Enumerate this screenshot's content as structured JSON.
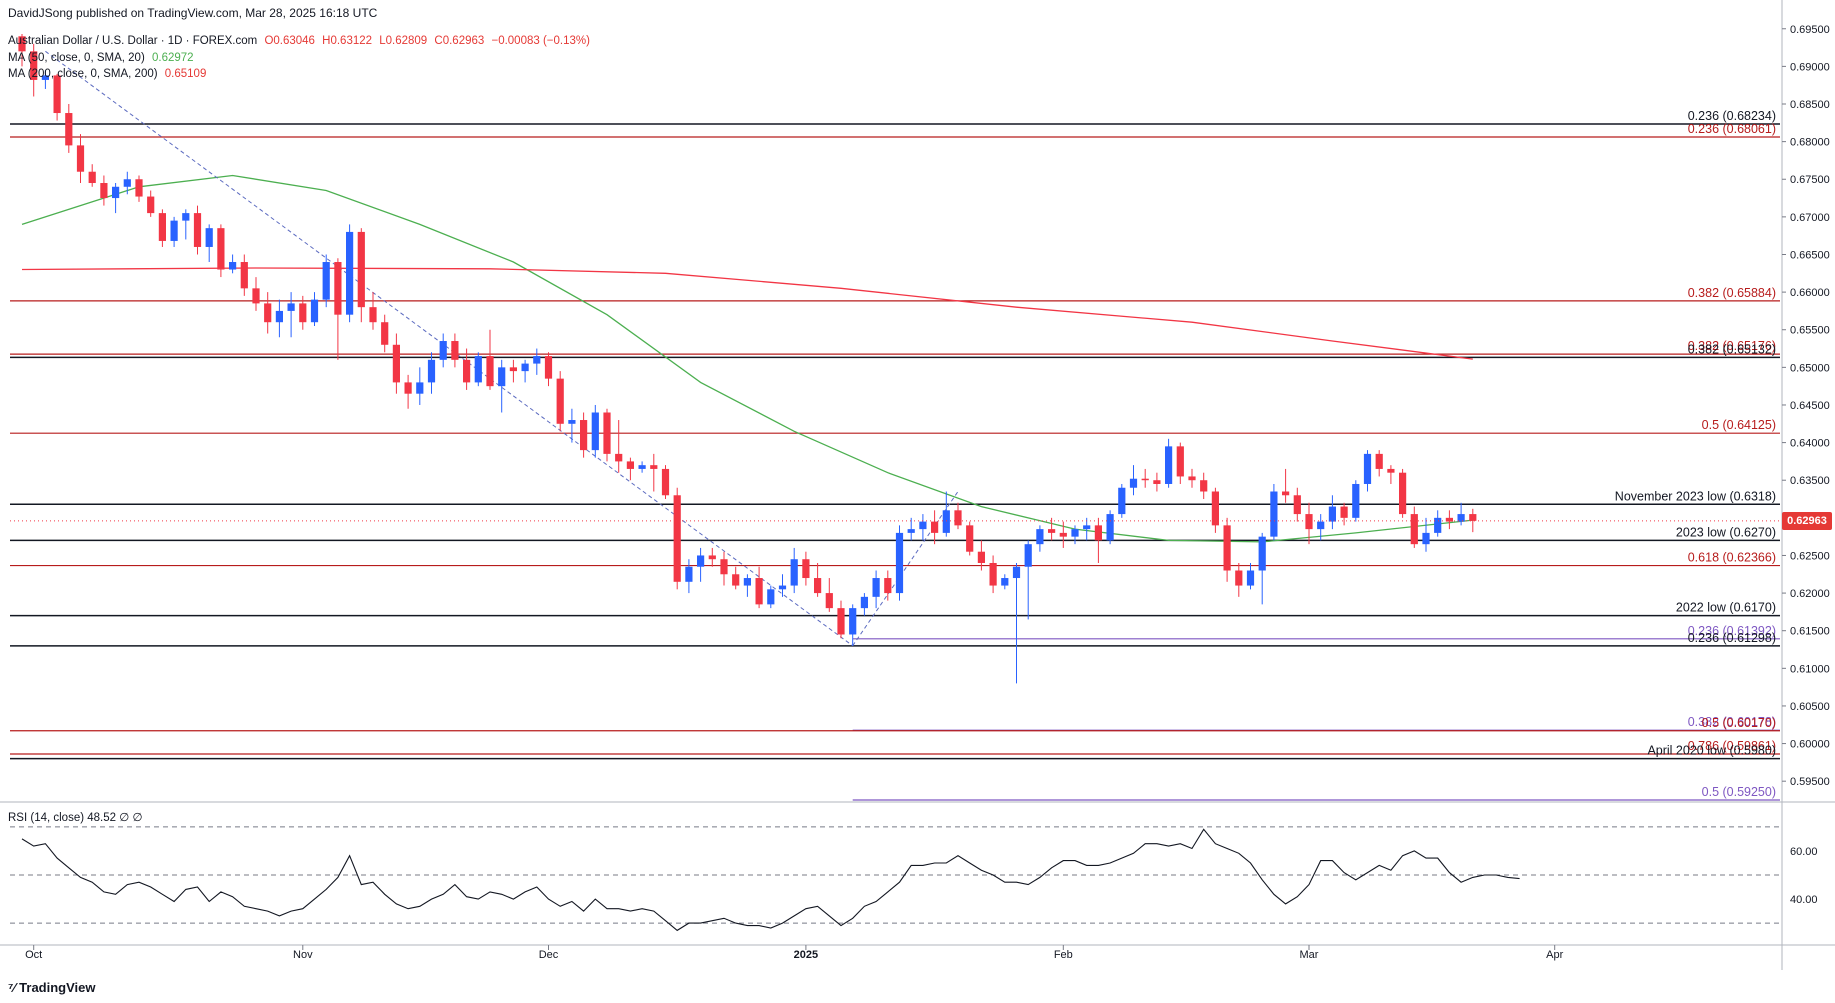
{
  "publisher": "DavidJSong published on TradingView.com, Mar 28, 2025 16:18 UTC",
  "legend": {
    "symbol": "Australian Dollar / U.S. Dollar · 1D · FOREX.com",
    "open": "O0.63046",
    "high": "H0.63122",
    "low": "L0.62809",
    "close": "C0.62963",
    "change": "−0.00083 (−0.13%)",
    "ma50_label": "MA (50, close, 0, SMA, 20)",
    "ma50_value": "0.62972",
    "ma200_label": "MA (200, close, 0, SMA, 200)",
    "ma200_value": "0.65109",
    "rsi_label": "RSI (14, close)",
    "rsi_value": "48.52",
    "rsi_extra": "∅ ∅"
  },
  "logo": "TradingView",
  "last_price_tag": "0.62963",
  "colors": {
    "up": "#2962ff",
    "down": "#f23645",
    "ma50": "#4caf50",
    "ma200": "#f23645",
    "fib_red": "#b71c1c",
    "fib_purple": "#7e57c2",
    "trend": "#5c6bc0"
  },
  "chart_data": [
    {
      "type": "candlestick",
      "title": "Australian Dollar / U.S. Dollar · 1D · FOREX.com",
      "y_range": [
        0.5925,
        0.6955
      ],
      "y_ticks": [
        "0.69500",
        "0.69000",
        "0.68500",
        "0.68000",
        "0.67500",
        "0.67000",
        "0.66500",
        "0.66000",
        "0.65500",
        "0.65000",
        "0.64500",
        "0.64000",
        "0.63500",
        "0.63000",
        "0.62500",
        "0.62000",
        "0.61500",
        "0.61000",
        "0.60500",
        "0.60000",
        "0.59500"
      ],
      "x_ticks": [
        "Oct",
        "Nov",
        "Dec",
        "2025",
        "Feb",
        "Mar",
        "Apr"
      ],
      "x_tick_index": [
        1,
        24,
        45,
        67,
        89,
        110,
        131
      ],
      "ohlc": [
        [
          0.694,
          0.6943,
          0.69,
          0.692
        ],
        [
          0.692,
          0.693,
          0.686,
          0.6882
        ],
        [
          0.6882,
          0.6895,
          0.687,
          0.6888
        ],
        [
          0.6888,
          0.689,
          0.6828,
          0.6838
        ],
        [
          0.6838,
          0.685,
          0.6785,
          0.6795
        ],
        [
          0.6795,
          0.681,
          0.6745,
          0.676
        ],
        [
          0.676,
          0.677,
          0.674,
          0.6745
        ],
        [
          0.6745,
          0.6755,
          0.6715,
          0.6725
        ],
        [
          0.6725,
          0.6745,
          0.6705,
          0.674
        ],
        [
          0.674,
          0.676,
          0.673,
          0.675
        ],
        [
          0.675,
          0.6755,
          0.672,
          0.6727
        ],
        [
          0.6727,
          0.6735,
          0.67,
          0.6705
        ],
        [
          0.6705,
          0.671,
          0.666,
          0.6668
        ],
        [
          0.6668,
          0.67,
          0.666,
          0.6695
        ],
        [
          0.6695,
          0.671,
          0.667,
          0.6705
        ],
        [
          0.6705,
          0.6715,
          0.665,
          0.666
        ],
        [
          0.666,
          0.669,
          0.664,
          0.6685
        ],
        [
          0.6685,
          0.669,
          0.662,
          0.663
        ],
        [
          0.663,
          0.665,
          0.6625,
          0.664
        ],
        [
          0.664,
          0.665,
          0.6595,
          0.6605
        ],
        [
          0.6605,
          0.662,
          0.6575,
          0.6585
        ],
        [
          0.6585,
          0.66,
          0.6545,
          0.656
        ],
        [
          0.656,
          0.659,
          0.654,
          0.6575
        ],
        [
          0.6575,
          0.66,
          0.654,
          0.6585
        ],
        [
          0.6585,
          0.6595,
          0.655,
          0.656
        ],
        [
          0.656,
          0.66,
          0.6555,
          0.659
        ],
        [
          0.659,
          0.665,
          0.658,
          0.664
        ],
        [
          0.664,
          0.6645,
          0.651,
          0.657
        ],
        [
          0.657,
          0.669,
          0.656,
          0.668
        ],
        [
          0.668,
          0.6685,
          0.656,
          0.658
        ],
        [
          0.658,
          0.66,
          0.655,
          0.656
        ],
        [
          0.656,
          0.657,
          0.652,
          0.653
        ],
        [
          0.653,
          0.6545,
          0.6465,
          0.648
        ],
        [
          0.648,
          0.649,
          0.6445,
          0.6465
        ],
        [
          0.6465,
          0.65,
          0.645,
          0.648
        ],
        [
          0.648,
          0.652,
          0.6465,
          0.651
        ],
        [
          0.651,
          0.6545,
          0.65,
          0.6535
        ],
        [
          0.6535,
          0.6545,
          0.65,
          0.651
        ],
        [
          0.651,
          0.6525,
          0.647,
          0.648
        ],
        [
          0.648,
          0.652,
          0.6475,
          0.6515
        ],
        [
          0.6515,
          0.655,
          0.647,
          0.6475
        ],
        [
          0.6475,
          0.651,
          0.644,
          0.65
        ],
        [
          0.65,
          0.651,
          0.648,
          0.6495
        ],
        [
          0.6495,
          0.651,
          0.648,
          0.6505
        ],
        [
          0.6505,
          0.6525,
          0.649,
          0.6515
        ],
        [
          0.6515,
          0.652,
          0.6475,
          0.6485
        ],
        [
          0.6485,
          0.6495,
          0.6415,
          0.6425
        ],
        [
          0.6425,
          0.6445,
          0.64,
          0.643
        ],
        [
          0.643,
          0.644,
          0.638,
          0.639
        ],
        [
          0.639,
          0.645,
          0.638,
          0.644
        ],
        [
          0.644,
          0.6445,
          0.6375,
          0.6385
        ],
        [
          0.6385,
          0.643,
          0.636,
          0.6375
        ],
        [
          0.6375,
          0.638,
          0.635,
          0.6365
        ],
        [
          0.6365,
          0.6375,
          0.636,
          0.637
        ],
        [
          0.637,
          0.6385,
          0.6335,
          0.6365
        ],
        [
          0.6365,
          0.637,
          0.6325,
          0.633
        ],
        [
          0.633,
          0.634,
          0.6205,
          0.6215
        ],
        [
          0.6215,
          0.6245,
          0.62,
          0.6235
        ],
        [
          0.6235,
          0.626,
          0.6215,
          0.625
        ],
        [
          0.625,
          0.626,
          0.6235,
          0.6245
        ],
        [
          0.6245,
          0.6255,
          0.621,
          0.6225
        ],
        [
          0.6225,
          0.6235,
          0.6205,
          0.621
        ],
        [
          0.621,
          0.6225,
          0.6195,
          0.622
        ],
        [
          0.622,
          0.6235,
          0.618,
          0.6185
        ],
        [
          0.6185,
          0.621,
          0.618,
          0.6205
        ],
        [
          0.6205,
          0.6225,
          0.6195,
          0.621
        ],
        [
          0.621,
          0.626,
          0.62,
          0.6245
        ],
        [
          0.6245,
          0.6255,
          0.621,
          0.622
        ],
        [
          0.622,
          0.624,
          0.6195,
          0.62
        ],
        [
          0.62,
          0.622,
          0.6175,
          0.618
        ],
        [
          0.618,
          0.619,
          0.614,
          0.6145
        ],
        [
          0.6145,
          0.6185,
          0.613,
          0.618
        ],
        [
          0.618,
          0.62,
          0.617,
          0.6195
        ],
        [
          0.6195,
          0.623,
          0.618,
          0.622
        ],
        [
          0.622,
          0.623,
          0.619,
          0.62
        ],
        [
          0.62,
          0.629,
          0.619,
          0.628
        ],
        [
          0.628,
          0.63,
          0.627,
          0.6285
        ],
        [
          0.6285,
          0.6305,
          0.627,
          0.6295
        ],
        [
          0.6295,
          0.631,
          0.6265,
          0.628
        ],
        [
          0.628,
          0.6335,
          0.6275,
          0.631
        ],
        [
          0.631,
          0.632,
          0.6285,
          0.629
        ],
        [
          0.629,
          0.6295,
          0.625,
          0.6255
        ],
        [
          0.6255,
          0.627,
          0.623,
          0.624
        ],
        [
          0.624,
          0.625,
          0.62,
          0.621
        ],
        [
          0.621,
          0.6225,
          0.6205,
          0.622
        ],
        [
          0.622,
          0.624,
          0.608,
          0.6235
        ],
        [
          0.6235,
          0.627,
          0.6165,
          0.6265
        ],
        [
          0.6265,
          0.629,
          0.6255,
          0.6285
        ],
        [
          0.6285,
          0.63,
          0.627,
          0.628
        ],
        [
          0.628,
          0.6295,
          0.626,
          0.6275
        ],
        [
          0.6275,
          0.629,
          0.6265,
          0.6285
        ],
        [
          0.6285,
          0.63,
          0.627,
          0.629
        ],
        [
          0.629,
          0.63,
          0.624,
          0.627
        ],
        [
          0.627,
          0.631,
          0.6265,
          0.6305
        ],
        [
          0.6305,
          0.6345,
          0.63,
          0.634
        ],
        [
          0.634,
          0.637,
          0.633,
          0.6352
        ],
        [
          0.6352,
          0.6365,
          0.634,
          0.635
        ],
        [
          0.635,
          0.636,
          0.6335,
          0.6345
        ],
        [
          0.6345,
          0.6405,
          0.634,
          0.6395
        ],
        [
          0.6395,
          0.64,
          0.6345,
          0.6355
        ],
        [
          0.6355,
          0.6365,
          0.634,
          0.635
        ],
        [
          0.635,
          0.636,
          0.6325,
          0.6335
        ],
        [
          0.6335,
          0.634,
          0.628,
          0.629
        ],
        [
          0.629,
          0.63,
          0.6215,
          0.623
        ],
        [
          0.623,
          0.624,
          0.6195,
          0.621
        ],
        [
          0.621,
          0.624,
          0.6205,
          0.623
        ],
        [
          0.623,
          0.628,
          0.6185,
          0.6275
        ],
        [
          0.6275,
          0.6345,
          0.627,
          0.6335
        ],
        [
          0.6335,
          0.6365,
          0.632,
          0.633
        ],
        [
          0.633,
          0.634,
          0.6295,
          0.6305
        ],
        [
          0.6305,
          0.632,
          0.6265,
          0.6285
        ],
        [
          0.6285,
          0.6305,
          0.627,
          0.6295
        ],
        [
          0.6295,
          0.633,
          0.6285,
          0.6315
        ],
        [
          0.6315,
          0.632,
          0.629,
          0.63
        ],
        [
          0.63,
          0.635,
          0.6295,
          0.6345
        ],
        [
          0.6345,
          0.639,
          0.6335,
          0.6385
        ],
        [
          0.6385,
          0.639,
          0.6355,
          0.6365
        ],
        [
          0.6365,
          0.637,
          0.6345,
          0.636
        ],
        [
          0.636,
          0.6365,
          0.63,
          0.6305
        ],
        [
          0.6305,
          0.6315,
          0.626,
          0.6265
        ],
        [
          0.6265,
          0.63,
          0.6255,
          0.628
        ],
        [
          0.628,
          0.631,
          0.6275,
          0.63
        ],
        [
          0.63,
          0.631,
          0.6285,
          0.6295
        ],
        [
          0.6295,
          0.632,
          0.629,
          0.6305
        ],
        [
          0.6305,
          0.6312,
          0.6281,
          0.6296
        ]
      ],
      "moving_averages": [
        {
          "name": "MA (50, close, 0, SMA, 20)",
          "current": 0.62972,
          "points": [
            [
              0,
              0.669
            ],
            [
              10,
              0.674
            ],
            [
              18,
              0.6755
            ],
            [
              26,
              0.6735
            ],
            [
              34,
              0.669
            ],
            [
              42,
              0.664
            ],
            [
              50,
              0.657
            ],
            [
              58,
              0.648
            ],
            [
              66,
              0.6415
            ],
            [
              74,
              0.636
            ],
            [
              82,
              0.6315
            ],
            [
              90,
              0.6285
            ],
            [
              98,
              0.627
            ],
            [
              106,
              0.6268
            ],
            [
              114,
              0.628
            ],
            [
              124,
              0.6297
            ]
          ]
        },
        {
          "name": "MA (200, close, 0, SMA, 200)",
          "current": 0.65109,
          "points": [
            [
              0,
              0.663
            ],
            [
              20,
              0.6632
            ],
            [
              40,
              0.6631
            ],
            [
              55,
              0.6625
            ],
            [
              70,
              0.6605
            ],
            [
              85,
              0.658
            ],
            [
              100,
              0.656
            ],
            [
              112,
              0.6535
            ],
            [
              124,
              0.6511
            ]
          ]
        }
      ],
      "horizontal_levels": [
        {
          "label": "0.236 (0.68234)",
          "value": 0.68234,
          "color": "black"
        },
        {
          "label": "0.236 (0.68061)",
          "value": 0.68061,
          "color": "red"
        },
        {
          "label": "0.382 (0.65884)",
          "value": 0.65884,
          "color": "red"
        },
        {
          "label": "0.382 (0.65176)",
          "value": 0.65176,
          "color": "red"
        },
        {
          "label": "0.382 (0.65132)",
          "value": 0.65132,
          "color": "black"
        },
        {
          "label": "0.5 (0.64125)",
          "value": 0.64125,
          "color": "red"
        },
        {
          "label": "November 2023 low (0.6318)",
          "value": 0.6318,
          "color": "black"
        },
        {
          "label": "2023 low (0.6270)",
          "value": 0.627,
          "color": "black"
        },
        {
          "label": "0.618 (0.62366)",
          "value": 0.62366,
          "color": "red"
        },
        {
          "label": "2022 low (0.6170)",
          "value": 0.617,
          "color": "black"
        },
        {
          "label": "0.236 (0.61392)",
          "value": 0.61392,
          "color": "purple"
        },
        {
          "label": "0.236 (0.61298)",
          "value": 0.61298,
          "color": "black"
        },
        {
          "label": "0.382 (0.60178)",
          "value": 0.60178,
          "color": "purple"
        },
        {
          "label": "0.5 (0.60170)",
          "value": 0.6017,
          "color": "red"
        },
        {
          "label": "0.786 (0.59861)",
          "value": 0.59861,
          "color": "red"
        },
        {
          "label": "April 2020 low (0.5980)",
          "value": 0.598,
          "color": "black"
        },
        {
          "label": "0.5 (0.59250)",
          "value": 0.5925,
          "color": "purple"
        }
      ],
      "trend_lines": [
        {
          "style": "dashed",
          "from": [
            2,
            0.692
          ],
          "to": [
            71,
            0.613
          ]
        },
        {
          "style": "dashed",
          "from": [
            71,
            0.613
          ],
          "to": [
            80,
            0.6335
          ]
        }
      ]
    },
    {
      "type": "line",
      "title": "RSI (14, close)",
      "y_range": [
        23,
        77
      ],
      "y_ticks": [
        "60.00",
        "40.00"
      ],
      "bands": [
        70,
        50,
        30
      ],
      "values": [
        65,
        62,
        63,
        57,
        53,
        49,
        47,
        43,
        42,
        46,
        47,
        45,
        42,
        39,
        44,
        45,
        39,
        43,
        41,
        37,
        36,
        35,
        33,
        35,
        36,
        40,
        44,
        49,
        58,
        46,
        47,
        42,
        38,
        36,
        37,
        40,
        42,
        46,
        41,
        40,
        43,
        42,
        40,
        43,
        45,
        40,
        37,
        39,
        35,
        40,
        36,
        36,
        35,
        36,
        35,
        31,
        27,
        30,
        30,
        31,
        32,
        30,
        29,
        29,
        28,
        30,
        33,
        36,
        37,
        33,
        29,
        32,
        37,
        39,
        43,
        47,
        54,
        54,
        55,
        55,
        58,
        55,
        52,
        50,
        47,
        47,
        46,
        49,
        53,
        56,
        56,
        54,
        54,
        55,
        57,
        59,
        63,
        63,
        62,
        63,
        61,
        69,
        63,
        61,
        59,
        55,
        48,
        42,
        38,
        41,
        46,
        56,
        56,
        51,
        48,
        51,
        54,
        52,
        58,
        60,
        57,
        57,
        51,
        47,
        49,
        50,
        50,
        49,
        48.52
      ]
    }
  ]
}
